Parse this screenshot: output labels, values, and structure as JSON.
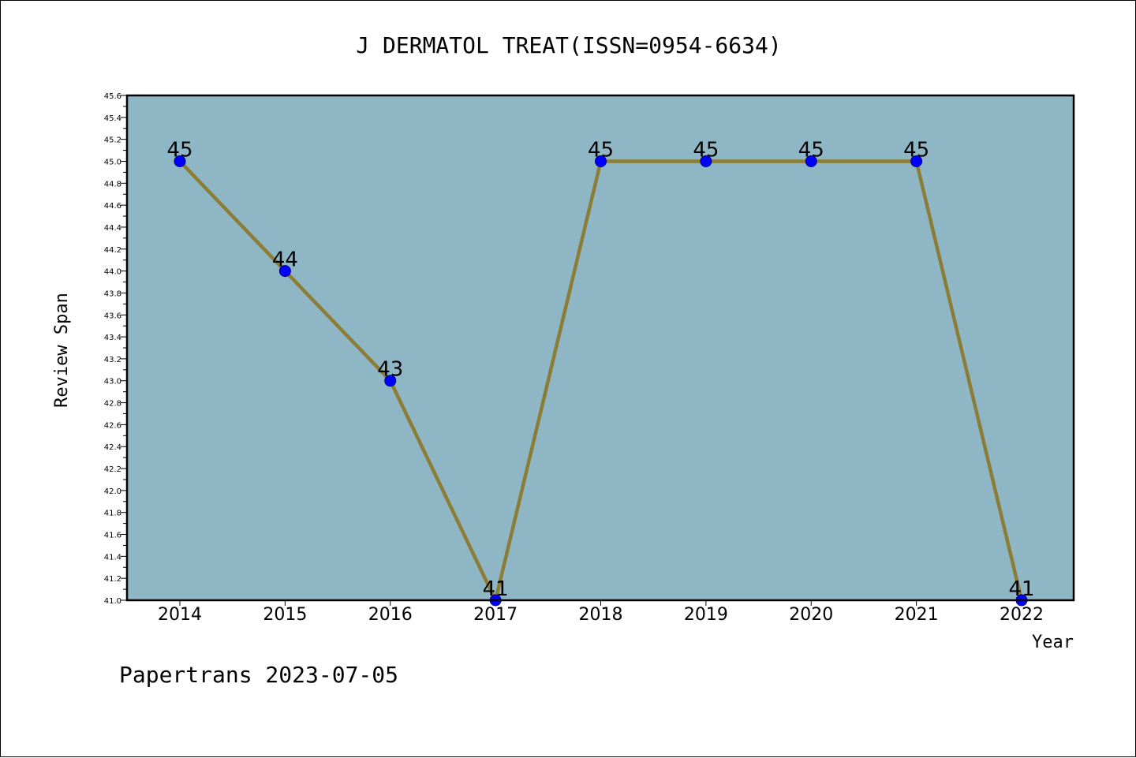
{
  "chart_data": {
    "type": "line",
    "title": "J DERMATOL TREAT(ISSN=0954-6634)",
    "xlabel": "Year",
    "ylabel": "Review Span",
    "categories": [
      "2014",
      "2015",
      "2016",
      "2017",
      "2018",
      "2019",
      "2020",
      "2021",
      "2022"
    ],
    "series": [
      {
        "values": [
          45,
          44,
          43,
          41,
          45,
          45,
          45,
          45,
          41
        ]
      }
    ],
    "data_labels": [
      "45",
      "44",
      "43",
      "41",
      "45",
      "45",
      "45",
      "45",
      "41"
    ],
    "ylim": [
      41.0,
      45.6
    ],
    "yticks": [
      "41.0",
      "41.2",
      "41.4",
      "41.6",
      "41.8",
      "42.0",
      "42.2",
      "42.4",
      "42.6",
      "42.8",
      "43.0",
      "43.2",
      "43.4",
      "43.6",
      "43.8",
      "44.0",
      "44.2",
      "44.4",
      "44.6",
      "44.8",
      "45.0",
      "45.2",
      "45.4",
      "45.6"
    ],
    "grid": false,
    "colors": {
      "plot_background": "#8fb6c4",
      "line": "#8b7d35",
      "marker": "#0000ff",
      "marker_edge": "#000080"
    }
  },
  "footer": "Papertrans 2023-07-05"
}
